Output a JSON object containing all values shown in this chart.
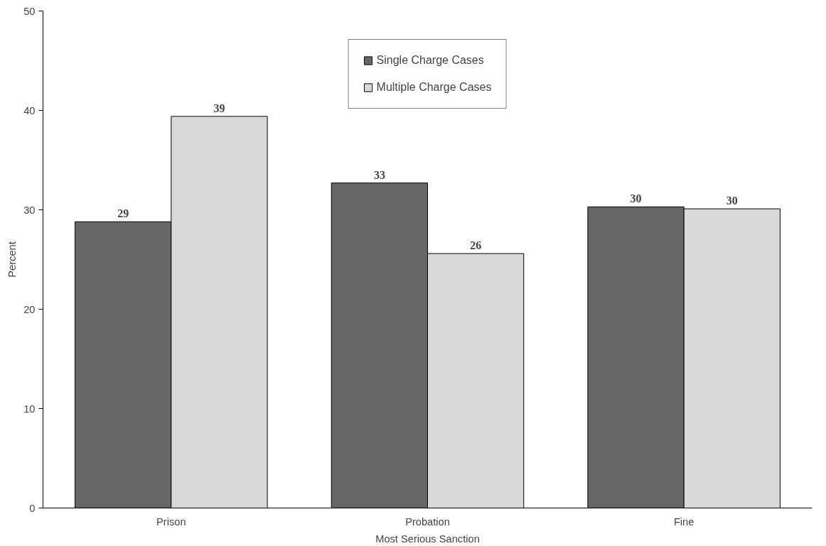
{
  "chart_data": {
    "type": "bar",
    "xlabel": "Most Serious Sanction",
    "ylabel": "Percent",
    "categories": [
      "Prison",
      "Probation",
      "Fine"
    ],
    "series": [
      {
        "name": "Single Charge Cases",
        "color": "#666666",
        "values": [
          28.8,
          32.7,
          30.3
        ],
        "value_labels": [
          "29",
          "33",
          "30"
        ]
      },
      {
        "name": "Multiple Charge Cases",
        "color": "#d9d9d9",
        "values": [
          39.4,
          25.6,
          30.1
        ],
        "value_labels": [
          "39",
          "26",
          "30"
        ]
      }
    ],
    "ylim": [
      0,
      50
    ],
    "yticks": [
      0,
      10,
      20,
      30,
      40,
      50
    ],
    "grid": false,
    "legend": "top"
  }
}
